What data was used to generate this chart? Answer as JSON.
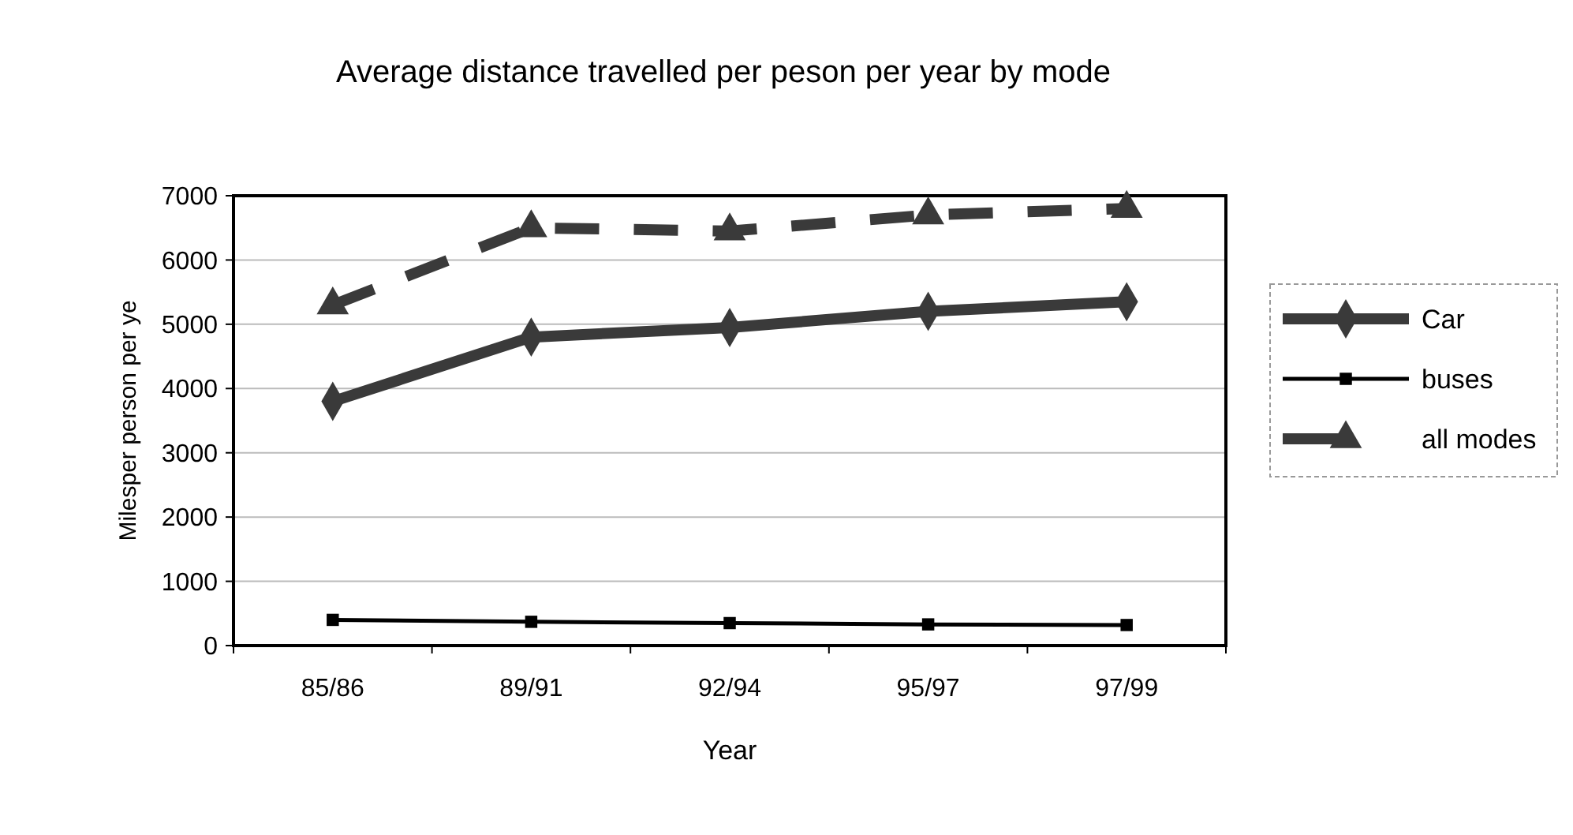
{
  "chart_data": {
    "type": "line",
    "title": "Average distance travelled per peson per year by mode",
    "xlabel": "Year",
    "ylabel": "Milesper person per ye",
    "categories": [
      "85/86",
      "89/91",
      "92/94",
      "95/97",
      "97/99"
    ],
    "series": [
      {
        "name": "Car",
        "color": "#3a3a3a",
        "values": [
          3800,
          4800,
          4950,
          5200,
          5350
        ],
        "marker": "diamond",
        "line_style": "solid"
      },
      {
        "name": "buses",
        "color": "#000000",
        "values": [
          400,
          370,
          350,
          330,
          320
        ],
        "marker": "square",
        "line_style": "solid"
      },
      {
        "name": "all modes",
        "color": "#3a3a3a",
        "values": [
          5300,
          6500,
          6450,
          6700,
          6800
        ],
        "marker": "triangle",
        "line_style": "dashed"
      }
    ],
    "ylim": [
      0,
      7000
    ],
    "yticks": [
      0,
      1000,
      2000,
      3000,
      4000,
      5000,
      6000,
      7000
    ],
    "grid": "y",
    "legend": "right"
  }
}
